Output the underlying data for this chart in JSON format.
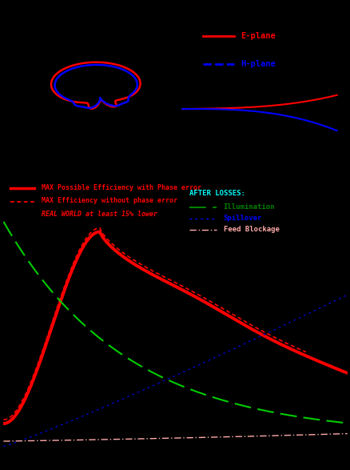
{
  "bg_color": "#000000",
  "radiation_pattern": {
    "e_plane_color": "#ff0000",
    "h_plane_color": "#0000ff"
  },
  "phase_curve_colors": {
    "e_plane": "#ff0000",
    "h_plane": "#0000ff"
  },
  "efficiency_colors": {
    "max_possible": "#ff0000",
    "max_no_phase": "#ff0000",
    "illumination": "#00cc00",
    "spillover": "#0000cc",
    "feed_blockage": "#ffaaaa"
  },
  "legend1": {
    "e_label": "E-plane",
    "h_label": "H-plane",
    "e_color": "#ff0000",
    "h_color": "#0000ff"
  },
  "legend2": {
    "line1": "MAX Possible Efficiency with Phase error",
    "line2": "MAX Efficiency without phase error",
    "line3": "REAL WORLD at least 15% lower",
    "after_losses": "AFTER LOSSES:",
    "illum": "Illumination",
    "spill": "Spillover",
    "block": "Feed Blockage"
  }
}
